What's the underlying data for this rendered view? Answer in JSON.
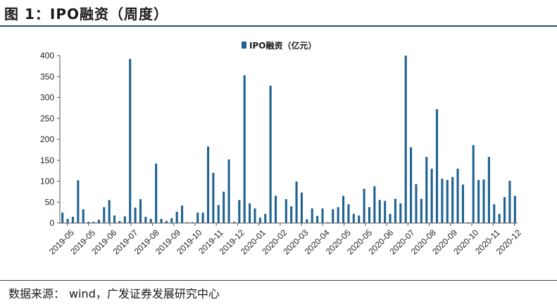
{
  "figure": {
    "title": "图 1：IPO融资（周度）",
    "source_label": "数据来源：",
    "source_text": "wind，广发证券发展研究中心"
  },
  "colors": {
    "bar": "#1f6391",
    "rule": "#1f4e79"
  },
  "chart_data": {
    "type": "bar",
    "title": "",
    "xlabel": "",
    "ylabel": "",
    "ylim": [
      0,
      400
    ],
    "yticks": [
      0,
      50,
      100,
      150,
      200,
      250,
      300,
      350,
      400
    ],
    "grid": false,
    "legend": {
      "position": "top-center"
    },
    "x_tick_labels": [
      "2019-05",
      "2019-05",
      "2019-06",
      "2019-07",
      "2019-08",
      "2019-09",
      "2019-10",
      "2019-11",
      "2019-12",
      "2020-01",
      "2020-02",
      "2020-03",
      "2020-04",
      "2020-05",
      "2020-05",
      "2020-06",
      "2020-07",
      "2020-08",
      "2020-09",
      "2020-10",
      "2020-11",
      "2020-12"
    ],
    "series": [
      {
        "name": "IPO融资（亿元）",
        "color": "#1f6391",
        "values": [
          25,
          10,
          15,
          102,
          33,
          3,
          3,
          8,
          38,
          55,
          18,
          5,
          16,
          392,
          37,
          57,
          15,
          10,
          142,
          10,
          5,
          12,
          27,
          42,
          2,
          2,
          25,
          25,
          183,
          120,
          43,
          75,
          152,
          3,
          55,
          353,
          47,
          35,
          13,
          22,
          328,
          65,
          0,
          57,
          40,
          99,
          73,
          9,
          35,
          17,
          35,
          2,
          33,
          38,
          65,
          45,
          22,
          18,
          82,
          38,
          88,
          55,
          53,
          22,
          58,
          47,
          400,
          181,
          93,
          58,
          158,
          130,
          272,
          106,
          103,
          110,
          130,
          92,
          2,
          186,
          103,
          104,
          158,
          45,
          22,
          62,
          101,
          65
        ]
      }
    ]
  }
}
